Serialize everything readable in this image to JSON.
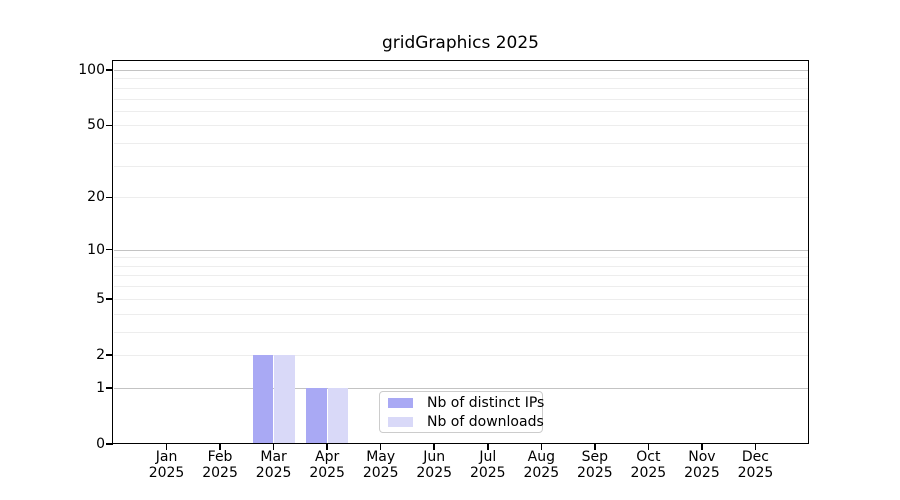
{
  "title": "gridGraphics 2025",
  "chart_data": {
    "type": "bar",
    "title": "gridGraphics 2025",
    "categories": [
      "Jan",
      "Feb",
      "Mar",
      "Apr",
      "May",
      "Jun",
      "Jul",
      "Aug",
      "Sep",
      "Oct",
      "Nov",
      "Dec"
    ],
    "x_year_label": "2025",
    "series": [
      {
        "name": "Nb of distinct IPs",
        "color": "#a9a9f4",
        "values": [
          0,
          0,
          2,
          1,
          0,
          0,
          0,
          0,
          0,
          0,
          0,
          0
        ]
      },
      {
        "name": "Nb of downloads",
        "color": "#d9d9f8",
        "values": [
          0,
          0,
          2,
          1,
          0,
          0,
          0,
          0,
          0,
          0,
          0,
          0
        ]
      }
    ],
    "y_axis": {
      "scale": "log1p",
      "tick_values": [
        0,
        1,
        2,
        5,
        10,
        20,
        50,
        100
      ],
      "major_grid_values": [
        1,
        10,
        100
      ],
      "minor_grid_values": [
        2,
        3,
        4,
        5,
        6,
        7,
        8,
        9,
        20,
        30,
        40,
        50,
        60,
        70,
        80,
        90
      ],
      "ylim": [
        0,
        100
      ]
    },
    "grid": true,
    "legend_position": "inside-bottom-center"
  },
  "colors": {
    "background": "#ffffff",
    "axis": "#000000",
    "major_grid": "#c3c3c3",
    "minor_grid": "#ededed",
    "legend_border": "#cccccc",
    "text": "#000000"
  }
}
